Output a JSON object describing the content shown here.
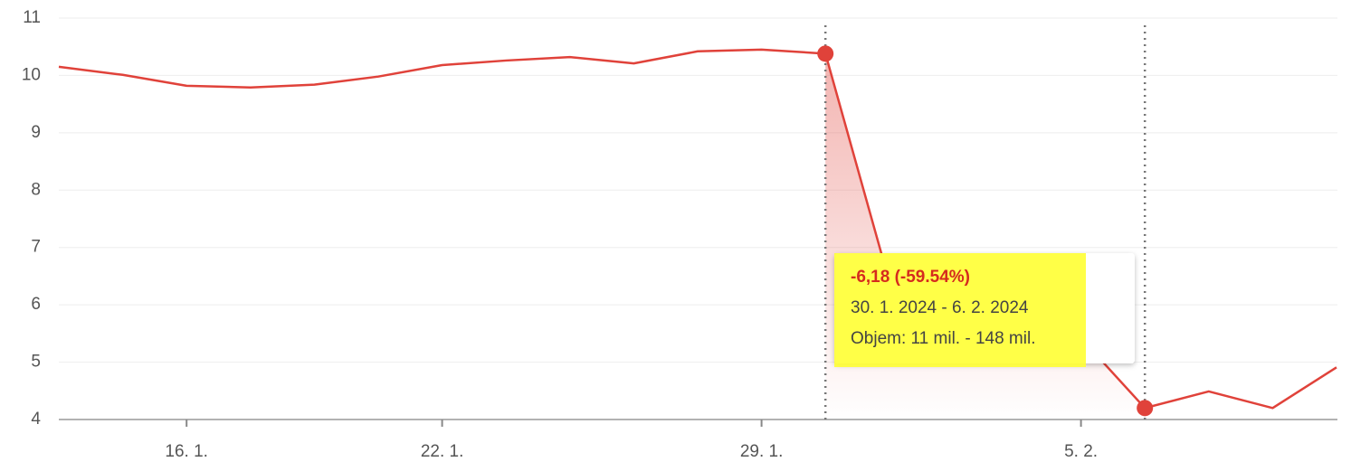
{
  "chart_data": {
    "type": "line",
    "categories": [
      null,
      null,
      "16. 1.",
      null,
      null,
      null,
      "22. 1.",
      null,
      null,
      null,
      null,
      "29. 1.",
      null,
      null,
      null,
      null,
      "5. 2.",
      null,
      null,
      null,
      null
    ],
    "values": [
      10.15,
      10.01,
      9.82,
      9.79,
      9.84,
      9.98,
      10.18,
      10.26,
      10.32,
      10.21,
      10.42,
      10.45,
      10.38,
      6.4,
      5.95,
      5.7,
      5.42,
      4.2,
      4.49,
      4.2,
      4.91
    ],
    "color": "#e0423a",
    "ylim": [
      4,
      11
    ],
    "yticks": [
      4,
      5,
      6,
      7,
      8,
      9,
      10,
      11
    ],
    "grid": true,
    "highlighted": [
      12,
      17
    ],
    "tooltip": {
      "change": "-6,18 (-59.54%)",
      "range": "30. 1. 2024 - 6. 2. 2024",
      "volume": "Objem: 11 mil. - 148 mil."
    }
  }
}
